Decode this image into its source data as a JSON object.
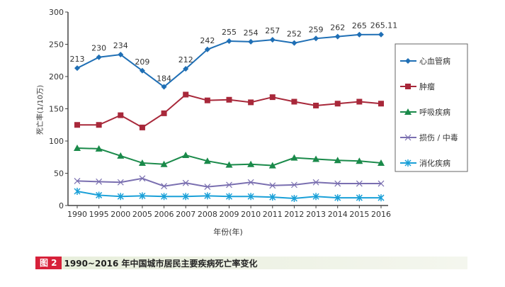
{
  "chart_data": {
    "type": "line",
    "title": "",
    "xlabel": "年份(年)",
    "ylabel": "死亡率(1/10万)",
    "ylim": [
      0,
      300
    ],
    "yticks": [
      0,
      50,
      100,
      150,
      200,
      250,
      300
    ],
    "grid": false,
    "legend_placement": "right",
    "categories": [
      "1990",
      "1995",
      "2000",
      "2005",
      "2006",
      "2007",
      "2008",
      "2009",
      "2010",
      "2011",
      "2012",
      "2013",
      "2014",
      "2015",
      "2016"
    ],
    "series": [
      {
        "name": "心血管病",
        "color": "#1f6fb5",
        "marker": "diamond",
        "values": [
          213,
          230,
          234,
          209,
          184,
          212,
          242,
          255,
          254,
          257,
          252,
          259,
          262,
          265,
          265.11
        ],
        "labels": [
          "213",
          "230",
          "234",
          "209",
          "184",
          "212",
          "242",
          "255",
          "254",
          "257",
          "252",
          "259",
          "262",
          "265",
          "265.11"
        ]
      },
      {
        "name": "肿瘤",
        "color": "#a8283a",
        "marker": "square",
        "values": [
          125,
          125,
          140,
          121,
          143,
          172,
          163,
          164,
          160,
          168,
          161,
          155,
          158,
          161,
          158
        ]
      },
      {
        "name": "呼吸疾病",
        "color": "#1a8a4a",
        "marker": "triangle",
        "values": [
          89,
          88,
          77,
          66,
          64,
          78,
          69,
          63,
          64,
          62,
          74,
          72,
          70,
          69,
          66
        ]
      },
      {
        "name": "损伤 / 中毒",
        "color": "#7a6fb0",
        "marker": "x",
        "values": [
          38,
          37,
          36,
          42,
          30,
          35,
          29,
          32,
          36,
          31,
          32,
          36,
          34,
          34,
          34
        ]
      },
      {
        "name": "消化疾病",
        "color": "#1aa0d8",
        "marker": "asterisk",
        "values": [
          22,
          16,
          14,
          15,
          14,
          14,
          15,
          14,
          14,
          13,
          11,
          14,
          12,
          12,
          12
        ]
      }
    ]
  },
  "caption": {
    "figure_label": "图 2",
    "text": "1990~2016 年中国城市居民主要疾病死亡率变化"
  }
}
